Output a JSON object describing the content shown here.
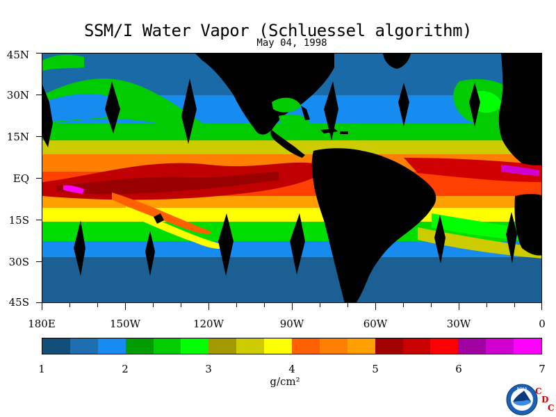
{
  "title": "SSM/I Water Vapor (Schluessel algorithm)",
  "date": "May 04, 1998",
  "lat_labels": [
    "45N",
    "30N",
    "15N",
    "EQ",
    "15S",
    "30S",
    "45S"
  ],
  "lon_labels": [
    "180E",
    "150W",
    "120W",
    "90W",
    "60W",
    "30W",
    "0"
  ],
  "colorbar": {
    "colors": [
      "#124e7a",
      "#1f6fb0",
      "#168cf0",
      "#009c00",
      "#00cc00",
      "#00ff00",
      "#a09a00",
      "#cccc00",
      "#ffff00",
      "#ff6000",
      "#ff8000",
      "#ffa000",
      "#a00000",
      "#c80000",
      "#ff0000",
      "#a000a0",
      "#d000d0",
      "#ff00ff"
    ],
    "tick_labels": [
      "1",
      "2",
      "3",
      "4",
      "5",
      "6",
      "7"
    ],
    "unit": "g/cm²"
  },
  "logo": {
    "text": "NOAA",
    "cdc_letters": [
      "C",
      "D",
      "C"
    ]
  }
}
